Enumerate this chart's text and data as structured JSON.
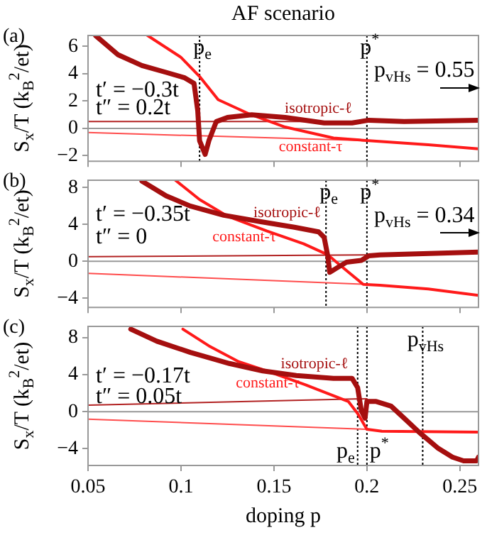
{
  "chart_data": [
    {
      "type": "line",
      "title": "AF scenario",
      "ylabel": "S$_{x}$/T (k$_{B}$$^{2}$/et)",
      "annotations": [
        "(a)",
        "t′ = −0.3t",
        "t″ = 0.2t",
        "p$_{vHs}$ = 0.55"
      ],
      "xlim": [
        0.05,
        0.26
      ],
      "xticks": [
        0.05,
        0.1,
        0.15,
        0.2,
        0.25
      ],
      "ylim": [
        -2.4,
        6.8
      ],
      "yticks": [
        -2,
        0,
        2,
        4,
        6
      ],
      "tick_labels": "y",
      "ref_lines": [
        {
          "axis": "y",
          "value": 0,
          "color": "#999999",
          "line_style": "solid"
        },
        {
          "axis": "x",
          "value": 0.11,
          "label": "p$_{e}$",
          "color": "#000000",
          "line_style": "dotted"
        },
        {
          "axis": "x",
          "value": 0.2,
          "label": "p$^{*}$",
          "color": "#000000",
          "line_style": "dotted"
        }
      ],
      "series": [
        {
          "name": "isotropic-ℓ",
          "color": "#a50f0f",
          "x": [
            0.054,
            0.066,
            0.079,
            0.092,
            0.102,
            0.107,
            0.109,
            0.11,
            0.113,
            0.115,
            0.119,
            0.125,
            0.138,
            0.156,
            0.177,
            0.192,
            0.201,
            0.22,
            0.26
          ],
          "values": [
            6.8,
            5.4,
            4.6,
            4.1,
            3.7,
            3.3,
            1.3,
            -0.9,
            -1.9,
            -0.9,
            0.5,
            0.8,
            1.0,
            0.8,
            0.4,
            0.4,
            0.6,
            0.5,
            0.6
          ]
        },
        {
          "name": "constant-τ",
          "color": "#ff1a1a",
          "x": [
            0.082,
            0.1,
            0.11,
            0.12,
            0.136,
            0.156,
            0.182,
            0.201,
            0.233,
            0.26
          ],
          "values": [
            6.8,
            5.2,
            3.8,
            2.1,
            1.1,
            0.1,
            -0.7,
            -0.9,
            -1.2,
            -1.5
          ]
        },
        {
          "color": "#b22222",
          "x": [
            0.05,
            0.2
          ],
          "values": [
            0.5,
            0.5
          ]
        },
        {
          "color": "#ff4d4d",
          "x": [
            0.05,
            0.2
          ],
          "values": [
            -0.3,
            -0.9
          ]
        }
      ]
    },
    {
      "type": "line",
      "ylabel": "S$_{x}$/T (k$_{B}$$^{2}$/et)",
      "annotations": [
        "(b)",
        "t′ = −0.35t",
        "t″ = 0",
        "p$_{vHs}$ = 0.34"
      ],
      "xlim": [
        0.05,
        0.26
      ],
      "xticks": [
        0.05,
        0.1,
        0.15,
        0.2,
        0.25
      ],
      "ylim": [
        -5,
        8.8
      ],
      "yticks": [
        -4,
        0,
        4,
        8
      ],
      "tick_labels": "y",
      "ref_lines": [
        {
          "axis": "y",
          "value": 0,
          "color": "#999999",
          "line_style": "solid"
        },
        {
          "axis": "x",
          "value": 0.178,
          "label": "p$_{e}$",
          "color": "#000000",
          "line_style": "dotted"
        },
        {
          "axis": "x",
          "value": 0.2,
          "label": "p$^{*}$",
          "color": "#000000",
          "line_style": "dotted"
        }
      ],
      "series": [
        {
          "name": "isotropic-ℓ",
          "color": "#a50f0f",
          "x": [
            0.079,
            0.092,
            0.105,
            0.123,
            0.143,
            0.161,
            0.174,
            0.177,
            0.179,
            0.18,
            0.184,
            0.189,
            0.197,
            0.201,
            0.207,
            0.26
          ],
          "values": [
            8.7,
            7.1,
            6.0,
            5.0,
            4.3,
            3.7,
            3.2,
            2.6,
            0.5,
            -1.2,
            -0.7,
            -0.1,
            0.1,
            0.6,
            0.7,
            1.0
          ]
        },
        {
          "name": "constant-τ",
          "color": "#ff1a1a",
          "x": [
            0.097,
            0.11,
            0.125,
            0.146,
            0.166,
            0.179,
            0.189,
            0.198,
            0.207,
            0.233,
            0.26
          ],
          "values": [
            8.8,
            6.7,
            4.9,
            3.3,
            1.9,
            0.7,
            -1.0,
            -2.5,
            -2.6,
            -3.0,
            -3.7
          ]
        },
        {
          "color": "#b22222",
          "x": [
            0.05,
            0.2
          ],
          "values": [
            0.5,
            0.7
          ]
        },
        {
          "color": "#ff4d4d",
          "x": [
            0.05,
            0.2
          ],
          "values": [
            -1.3,
            -2.5
          ]
        }
      ]
    },
    {
      "type": "line",
      "xlabel": "doping p",
      "ylabel": "S$_{x}$/T (k$_{B}$$^{2}$/et)",
      "annotations": [
        "(c)",
        "t′ = −0.17t",
        "t″ = 0.05t"
      ],
      "xlim": [
        0.05,
        0.26
      ],
      "xticks": [
        0.05,
        0.1,
        0.15,
        0.2,
        0.25
      ],
      "ylim": [
        -5.8,
        9.2
      ],
      "yticks": [
        -4,
        0,
        4,
        8
      ],
      "ref_lines": [
        {
          "axis": "y",
          "value": 0,
          "color": "#999999",
          "line_style": "solid"
        },
        {
          "axis": "x",
          "value": 0.195,
          "label": "p$_{e}$",
          "color": "#000000",
          "line_style": "dotted"
        },
        {
          "axis": "x",
          "value": 0.2,
          "label": "p$^{*}$",
          "color": "#000000",
          "line_style": "dotted"
        },
        {
          "axis": "x",
          "value": 0.23,
          "label": "p$_{vHs}$",
          "color": "#000000",
          "line_style": "dotted"
        }
      ],
      "series": [
        {
          "name": "isotropic-ℓ",
          "color": "#a50f0f",
          "x": [
            0.073,
            0.087,
            0.105,
            0.126,
            0.144,
            0.162,
            0.182,
            0.192,
            0.195,
            0.197,
            0.199,
            0.2,
            0.205,
            0.213,
            0.22,
            0.228,
            0.238,
            0.246,
            0.252,
            0.259,
            0.26
          ],
          "values": [
            8.9,
            7.6,
            6.4,
            5.2,
            4.4,
            3.9,
            3.6,
            3.6,
            2.6,
            0.1,
            -0.7,
            1.1,
            1.1,
            0.6,
            -0.7,
            -2.2,
            -3.9,
            -4.9,
            -5.3,
            -5.3,
            -4.9
          ]
        },
        {
          "name": "constant-τ",
          "color": "#ff1a1a",
          "x": [
            0.101,
            0.115,
            0.131,
            0.146,
            0.167,
            0.19,
            0.195,
            0.2,
            0.208,
            0.26
          ],
          "values": [
            8.9,
            7.1,
            5.4,
            4.4,
            2.9,
            1.1,
            -0.2,
            -1.9,
            -2.1,
            -2.2
          ]
        },
        {
          "color": "#b22222",
          "x": [
            0.05,
            0.2
          ],
          "values": [
            0.7,
            1.4
          ]
        },
        {
          "color": "#ff4d4d",
          "x": [
            0.05,
            0.2
          ],
          "values": [
            -0.8,
            -1.9
          ]
        }
      ]
    }
  ]
}
